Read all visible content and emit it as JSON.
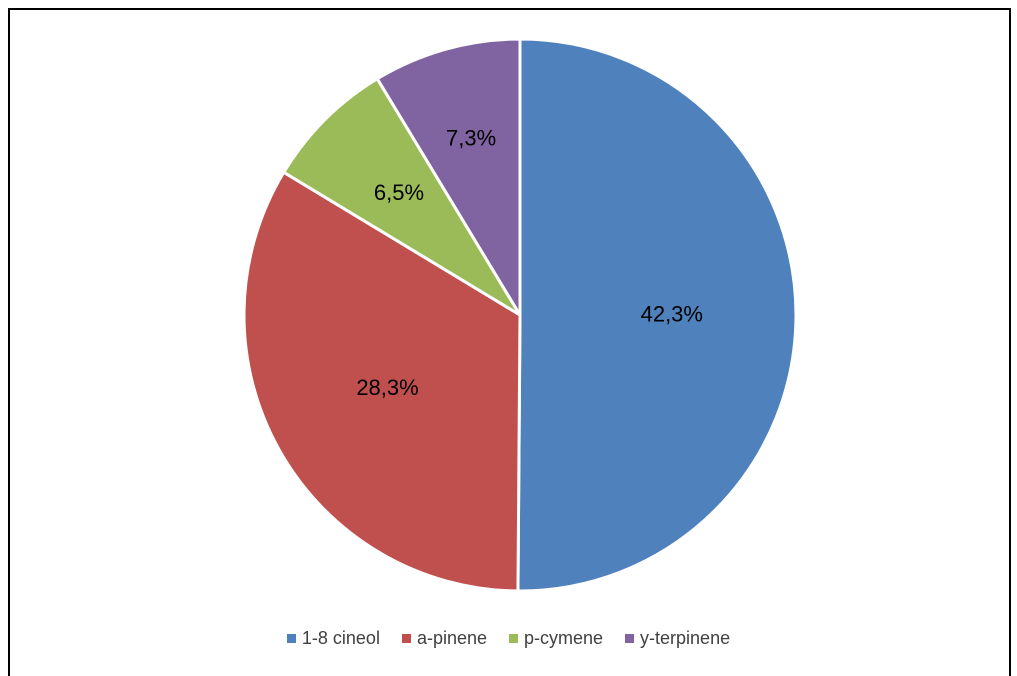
{
  "chart_data": {
    "type": "pie",
    "title": "",
    "categories": [
      "1-8 cineol",
      "a-pinene",
      "p-cymene",
      "y-terpinene"
    ],
    "values": [
      42.3,
      28.3,
      6.5,
      7.3
    ],
    "data_labels": [
      "42,3%",
      "28,3%",
      "6,5%",
      "7,3%"
    ],
    "colors": [
      "#4F81BD",
      "#C0504D",
      "#9BBB59",
      "#8064A2"
    ],
    "start_angle_deg": 0,
    "direction": "clockwise",
    "legend_position": "bottom"
  }
}
